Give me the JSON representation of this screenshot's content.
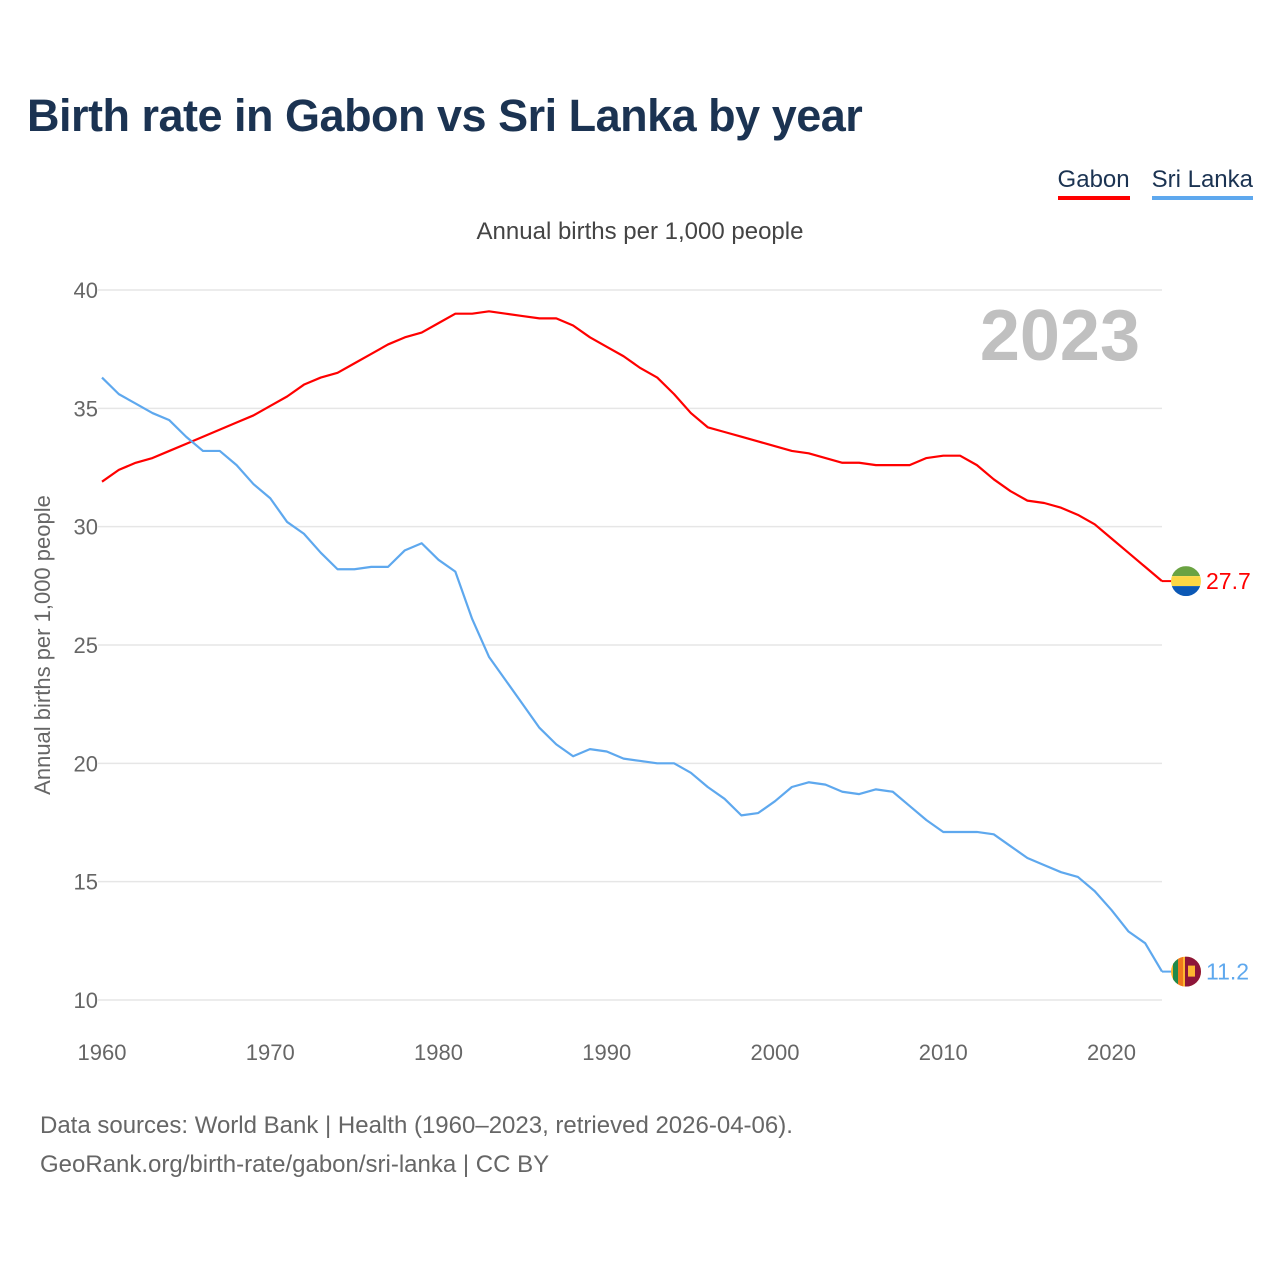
{
  "title": "Birth rate in Gabon vs Sri Lanka by year",
  "legend": [
    {
      "name": "Gabon",
      "color": "#ff0000"
    },
    {
      "name": "Sri Lanka",
      "color": "#5ea8ee"
    }
  ],
  "subtitle": "Annual births per 1,000 people",
  "year_label": "2023",
  "source_line1": "Data sources: World Bank | Health (1960–2023, retrieved 2026-04-06).",
  "source_line2": "GeoRank.org/birth-rate/gabon/sri-lanka | CC BY",
  "chart_data": {
    "type": "line",
    "title": "Birth rate in Gabon vs Sri Lanka by year",
    "xlabel": "",
    "ylabel": "Annual births per 1,000 people",
    "xlim": [
      1960,
      2023
    ],
    "ylim": [
      10,
      40
    ],
    "xticks": [
      1960,
      1970,
      1980,
      1990,
      2000,
      2010,
      2020
    ],
    "yticks": [
      10,
      15,
      20,
      25,
      30,
      35,
      40
    ],
    "grid": true,
    "legend_position": "top-right",
    "x_start": 1960,
    "series": [
      {
        "name": "Gabon",
        "color": "#ff0000",
        "end_label": "27.7",
        "values": [
          31.9,
          32.4,
          32.7,
          32.9,
          33.2,
          33.5,
          33.8,
          34.1,
          34.4,
          34.7,
          35.1,
          35.5,
          36.0,
          36.3,
          36.5,
          36.9,
          37.3,
          37.7,
          38.0,
          38.2,
          38.6,
          39.0,
          39.0,
          39.1,
          39.0,
          38.9,
          38.8,
          38.8,
          38.5,
          38.0,
          37.6,
          37.2,
          36.7,
          36.3,
          35.6,
          34.8,
          34.2,
          34.0,
          33.8,
          33.6,
          33.4,
          33.2,
          33.1,
          32.9,
          32.7,
          32.7,
          32.6,
          32.6,
          32.6,
          32.9,
          33.0,
          33.0,
          32.6,
          32.0,
          31.5,
          31.1,
          31.0,
          30.8,
          30.5,
          30.1,
          29.5,
          28.9,
          28.3,
          27.7
        ]
      },
      {
        "name": "Sri Lanka",
        "color": "#5ea8ee",
        "end_label": "11.2",
        "values": [
          36.3,
          35.6,
          35.2,
          34.8,
          34.5,
          33.8,
          33.2,
          33.2,
          32.6,
          31.8,
          31.2,
          30.2,
          29.7,
          28.9,
          28.2,
          28.2,
          28.3,
          28.3,
          29.0,
          29.3,
          28.6,
          28.1,
          26.1,
          24.5,
          23.5,
          22.5,
          21.5,
          20.8,
          20.3,
          20.6,
          20.5,
          20.2,
          20.1,
          20.0,
          20.0,
          19.6,
          19.0,
          18.5,
          17.8,
          17.9,
          18.4,
          19.0,
          19.2,
          19.1,
          18.8,
          18.7,
          18.9,
          18.8,
          18.2,
          17.6,
          17.1,
          17.1,
          17.1,
          17.0,
          16.5,
          16.0,
          15.7,
          15.4,
          15.2,
          14.6,
          13.8,
          12.9,
          12.4,
          11.2
        ]
      }
    ]
  }
}
